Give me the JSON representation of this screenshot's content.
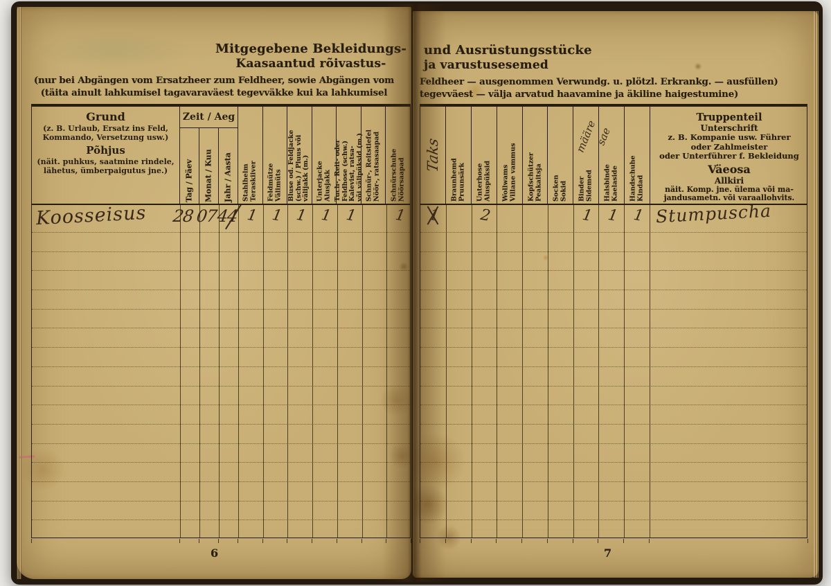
{
  "colors": {
    "paper": "#c8ae74",
    "ink": "#281e10",
    "handwriting_ink": "#38281a"
  },
  "book": {
    "left_page": {
      "page_number": "6",
      "title_de": "Mitgegebene Bekleidungs-",
      "title_et": "Kaasaantud rõivastus-",
      "note_de": "(nur bei Abgängen vom Ersatzheer zum Feldheer, sowie Abgängen vom",
      "note_et": "(täita ainult lahkumisel tagavaraväest tegevväkke kui ka lahkumisel",
      "table": {
        "grund_title_de": "Grund",
        "grund_example_de": "(z. B. Urlaub, Ersatz ins Feld, Kommando, Versetzung usw.)",
        "grund_title_et": "Põhjus",
        "grund_example_et": "(näit. puhkus, saatmine rindele, lähetus, ümberpaigutus jne.)",
        "zeit_title": "Zeit / Aeg",
        "date_columns": [
          "Tag / Päev",
          "Monat / Kuu",
          "Jahr / Aasta"
        ],
        "item_columns": [
          {
            "lines": [
              "Stahlhelm",
              "Teraskiiver"
            ]
          },
          {
            "lines": [
              "Feldmütze",
              "Välimüts"
            ]
          },
          {
            "lines": [
              "Bluse od. Feldjacke",
              "(schw.) / Pluus või",
              "välijakk (m.)"
            ]
          },
          {
            "lines": [
              "Unterjacke",
              "Alusjakk"
            ]
          },
          {
            "lines": [
              "Tuch-, Reit- oder",
              "Feldhose (schw.)",
              "Kalevist, ratsa-",
              "või välipüksid (m.)"
            ]
          },
          {
            "lines": [
              "Schnür-, Reitstiefel",
              "Nöör-, ratsasaapad"
            ]
          },
          {
            "lines": [
              "Schnürschuhe",
              "Nöörsaapad"
            ]
          }
        ],
        "entry": {
          "reason": "Koosseisus",
          "day": "28",
          "month": "07",
          "year": "44",
          "item_values": [
            "1",
            "1",
            "1",
            "1",
            "1",
            "",
            "1"
          ]
        },
        "empty_rows": 16
      }
    },
    "right_page": {
      "page_number": "7",
      "title_de": "und Ausrüstungsstücke",
      "title_et": "ja varustusesemed",
      "note_de": "Feldheer — ausgenommen Verwundg. u. plötzl. Erkrankg. — ausfüllen)",
      "note_et": "tegevväest — välja arvatud haavamine ja äkiline haigestumine)",
      "table": {
        "item_columns": [
          {
            "lines": [],
            "handwritten": "Taks"
          },
          {
            "lines": [
              "Braunhemd",
              "Pruunsärk"
            ]
          },
          {
            "lines": [
              "Unterhose",
              "Aluspüksid"
            ]
          },
          {
            "lines": [
              "Wollwams",
              "Villane vammus"
            ]
          },
          {
            "lines": [
              "Kopfschützer",
              "Peakaitsja"
            ]
          },
          {
            "lines": [
              "Socken",
              "Sokid"
            ]
          },
          {
            "lines": [
              "Binder",
              "Sidemed"
            ],
            "handwritten_note": "määre"
          },
          {
            "lines": [
              "Halsbinde",
              "Kaelaside"
            ],
            "handwritten_note": "sae"
          },
          {
            "lines": [
              "Handschuhe",
              "Kindad"
            ]
          }
        ],
        "truppenteil_lines": [
          "Truppenteil",
          "Unterschrift",
          "z. B. Kompanie usw. Führer",
          "oder Zahlmeister",
          "oder Unterführer f. Bekleidung",
          "Väeosa",
          "Allkiri",
          "näit. Komp. jne. ülema või ma-",
          "jandusametn. või varaallohvits."
        ],
        "entry": {
          "item_values": [
            "1",
            "",
            "2",
            "",
            "",
            "",
            "1",
            "1",
            "1"
          ],
          "first_value_crossed": true,
          "signature": "Stumpuscha"
        },
        "empty_rows": 16
      }
    }
  }
}
